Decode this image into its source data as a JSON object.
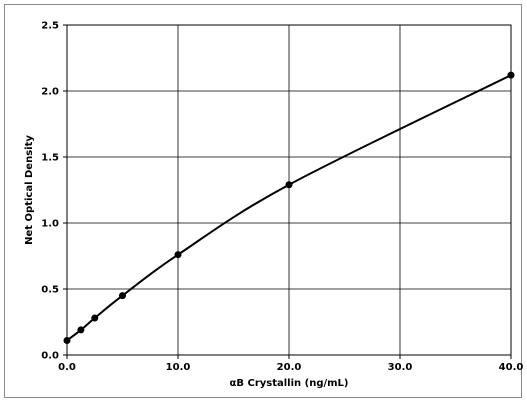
{
  "chart_data": {
    "type": "line",
    "xlabel": "αB Crystallin (ng/mL)",
    "ylabel": "Net Optical Density",
    "xlim": [
      0,
      40
    ],
    "ylim": [
      0,
      2.5
    ],
    "x_ticks": [
      0,
      10,
      20,
      30,
      40
    ],
    "y_ticks": [
      0,
      0.5,
      1.0,
      1.5,
      2.0,
      2.5
    ],
    "x_tick_labels": [
      "0.0",
      "10.0",
      "20.0",
      "30.0",
      "40.0"
    ],
    "y_tick_labels": [
      "0.0",
      "0.5",
      "1.0",
      "1.5",
      "2.0",
      "2.5"
    ],
    "grid": true,
    "series": [
      {
        "x": [
          0,
          1.25,
          2.5,
          5,
          10,
          20,
          40
        ],
        "y": [
          0.11,
          0.19,
          0.28,
          0.45,
          0.76,
          1.29,
          2.12
        ]
      }
    ],
    "colors": {
      "line": "#000000",
      "marker": "#000000",
      "grid": "#000000",
      "frame": "#8a8a8a"
    }
  }
}
